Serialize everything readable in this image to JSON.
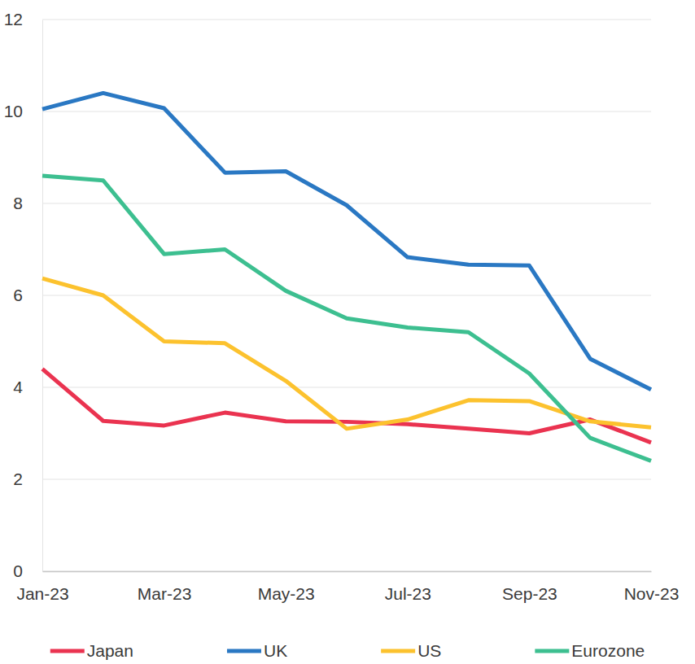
{
  "chart_data": {
    "type": "line",
    "categories": [
      "Jan-23",
      null,
      "Mar-23",
      null,
      "May-23",
      null,
      "Jul-23",
      null,
      "Sep-23",
      null,
      "Nov-23"
    ],
    "series": [
      {
        "name": "Japan",
        "color": "#ea3350",
        "values": [
          4.4,
          3.27,
          3.17,
          3.45,
          3.26,
          3.25,
          3.2,
          3.1,
          3.0,
          3.3,
          2.8
        ]
      },
      {
        "name": "UK",
        "color": "#2a78c3",
        "values": [
          10.05,
          10.4,
          10.07,
          8.67,
          8.7,
          7.96,
          6.83,
          6.67,
          6.65,
          4.62,
          3.95
        ]
      },
      {
        "name": "US",
        "color": "#fcc22e",
        "values": [
          6.37,
          6.0,
          5.0,
          4.96,
          4.14,
          3.1,
          3.3,
          3.72,
          3.7,
          3.26,
          3.13
        ]
      },
      {
        "name": "Eurozone",
        "color": "#3dbf90",
        "values": [
          8.6,
          8.5,
          6.9,
          7.0,
          6.1,
          5.5,
          5.3,
          5.2,
          4.3,
          2.9,
          2.4
        ]
      }
    ],
    "ylim": [
      0,
      12
    ],
    "yticks": [
      0,
      2,
      4,
      6,
      8,
      10,
      12
    ],
    "grid": true,
    "legend": "bottom"
  }
}
